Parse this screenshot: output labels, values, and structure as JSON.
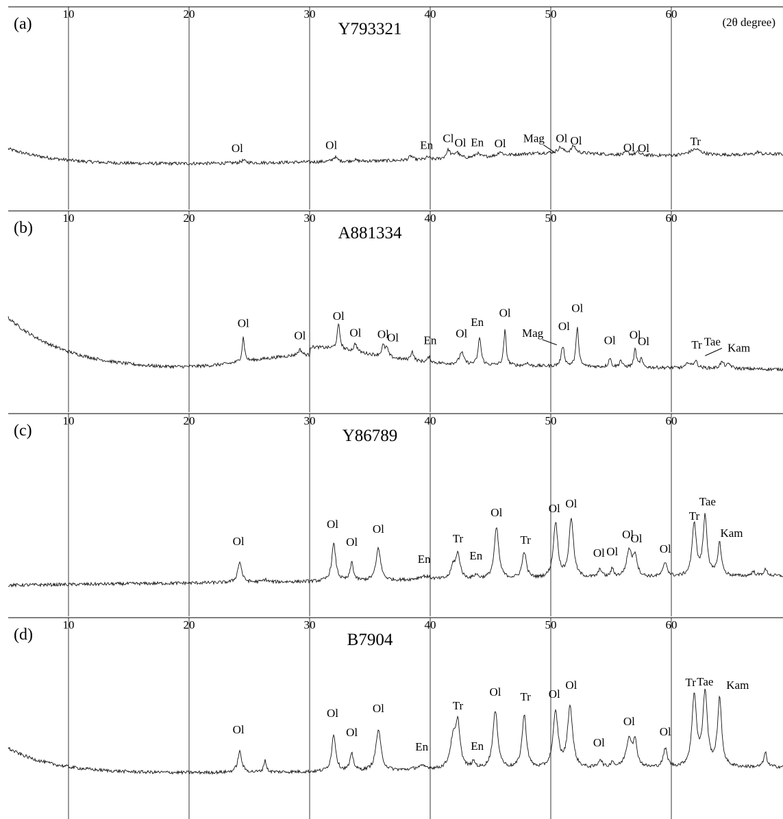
{
  "chart_data": {
    "type": "line",
    "x_unit": "(2θ degree)",
    "x_ticks": [
      10,
      20,
      30,
      40,
      50,
      60
    ],
    "xlim": [
      5,
      69
    ],
    "grid": "vertical lines at 10° intervals",
    "panels": [
      {
        "label": "(a)",
        "title": "Y793321",
        "peaks": [
          {
            "x": 24.5,
            "y": 0.12,
            "w": 0.25,
            "label": "Ol",
            "lx": 24.0,
            "ly": 0.6
          },
          {
            "x": 32.1,
            "y": 0.22,
            "w": 0.22,
            "label": "Ol",
            "lx": 31.8,
            "ly": 0.75
          },
          {
            "x": 33.7,
            "y": 0.07,
            "w": 0.2,
            "label": "",
            "lx": 0,
            "ly": 0
          },
          {
            "x": 38.4,
            "y": 0.2,
            "w": 0.2,
            "label": "",
            "lx": 0,
            "ly": 0
          },
          {
            "x": 39.8,
            "y": 0.12,
            "w": 0.2,
            "label": "En",
            "lx": 39.7,
            "ly": 0.75
          },
          {
            "x": 41.5,
            "y": 0.42,
            "w": 0.2,
            "label": "Cl",
            "lx": 41.5,
            "ly": 1.08
          },
          {
            "x": 42.2,
            "y": 0.3,
            "w": 0.25,
            "label": "Ol",
            "lx": 42.5,
            "ly": 0.87
          },
          {
            "x": 43.9,
            "y": 0.2,
            "w": 0.2,
            "label": "En",
            "lx": 43.9,
            "ly": 0.88
          },
          {
            "x": 45.8,
            "y": 0.2,
            "w": 0.2,
            "label": "Ol",
            "lx": 45.8,
            "ly": 0.83
          },
          {
            "x": 50.8,
            "y": 0.26,
            "w": 0.25,
            "label": "Ol",
            "lx": 50.9,
            "ly": 1.08
          },
          {
            "x": 51.9,
            "y": 0.34,
            "w": 0.2,
            "label": "Ol",
            "lx": 52.1,
            "ly": 0.96
          },
          {
            "x": 56.3,
            "y": 0.13,
            "w": 0.2,
            "label": "Ol",
            "lx": 56.5,
            "ly": 0.63
          },
          {
            "x": 57.2,
            "y": 0.15,
            "w": 0.2,
            "label": "Ol",
            "lx": 57.7,
            "ly": 0.6
          },
          {
            "x": 62.0,
            "y": 0.3,
            "w": 0.6,
            "label": "Tr",
            "lx": 62.0,
            "ly": 0.93
          },
          {
            "x": 67.2,
            "y": 0.12,
            "w": 0.2,
            "label": "",
            "lx": 0,
            "ly": 0
          }
        ],
        "extra_labels": [
          {
            "text": "Mag",
            "lx": 48.6,
            "ly": 1.08,
            "px": 50.4,
            "py": 0.55
          }
        ]
      },
      {
        "label": "(b)",
        "title": "A881334",
        "peaks": [
          {
            "x": 24.5,
            "y": 1.2,
            "w": 0.12,
            "label": "Ol",
            "lx": 24.5,
            "ly": 2.15
          },
          {
            "x": 29.2,
            "y": 0.28,
            "w": 0.2,
            "label": "Ol",
            "lx": 29.2,
            "ly": 1.55
          },
          {
            "x": 32.4,
            "y": 1.2,
            "w": 0.14,
            "label": "Ol",
            "lx": 32.4,
            "ly": 2.5
          },
          {
            "x": 33.8,
            "y": 0.4,
            "w": 0.15,
            "label": "Ol",
            "lx": 33.8,
            "ly": 1.68
          },
          {
            "x": 36.1,
            "y": 0.5,
            "w": 0.15,
            "label": "Ol",
            "lx": 36.1,
            "ly": 1.62
          },
          {
            "x": 36.4,
            "y": 0.4,
            "w": 0.15,
            "label": "Ol",
            "lx": 36.9,
            "ly": 1.45
          },
          {
            "x": 38.5,
            "y": 0.45,
            "w": 0.15,
            "label": "",
            "lx": 0,
            "ly": 0
          },
          {
            "x": 39.9,
            "y": 0.25,
            "w": 0.15,
            "label": "En",
            "lx": 40.0,
            "ly": 1.32
          },
          {
            "x": 42.6,
            "y": 0.6,
            "w": 0.2,
            "label": "Ol",
            "lx": 42.6,
            "ly": 1.65
          },
          {
            "x": 44.1,
            "y": 1.35,
            "w": 0.14,
            "label": "En",
            "lx": 43.9,
            "ly": 2.2
          },
          {
            "x": 46.2,
            "y": 1.7,
            "w": 0.12,
            "label": "Ol",
            "lx": 46.2,
            "ly": 2.65
          },
          {
            "x": 48.0,
            "y": 0.15,
            "w": 0.15,
            "label": "",
            "lx": 0,
            "ly": 0
          },
          {
            "x": 51.0,
            "y": 1.0,
            "w": 0.15,
            "label": "Ol",
            "lx": 51.1,
            "ly": 2.0
          },
          {
            "x": 52.2,
            "y": 2.0,
            "w": 0.12,
            "label": "Ol",
            "lx": 52.2,
            "ly": 2.88
          },
          {
            "x": 54.9,
            "y": 0.45,
            "w": 0.12,
            "label": "Ol",
            "lx": 54.9,
            "ly": 1.32
          },
          {
            "x": 55.8,
            "y": 0.35,
            "w": 0.12,
            "label": "",
            "lx": 0,
            "ly": 0
          },
          {
            "x": 57.0,
            "y": 0.9,
            "w": 0.12,
            "label": "Ol",
            "lx": 57.0,
            "ly": 1.58
          },
          {
            "x": 57.5,
            "y": 0.4,
            "w": 0.12,
            "label": "Ol",
            "lx": 57.7,
            "ly": 1.27
          },
          {
            "x": 61.4,
            "y": 0.28,
            "w": 0.15,
            "label": "",
            "lx": 0,
            "ly": 0
          },
          {
            "x": 62.0,
            "y": 0.35,
            "w": 0.2,
            "label": "Tr",
            "lx": 62.1,
            "ly": 1.1
          },
          {
            "x": 64.2,
            "y": 0.3,
            "w": 0.2,
            "label": "",
            "lx": 0,
            "ly": 0
          },
          {
            "x": 64.8,
            "y": 0.2,
            "w": 0.2,
            "label": "Kam",
            "lx": 65.6,
            "ly": 0.95
          }
        ],
        "extra_labels": [
          {
            "text": "Mag",
            "lx": 48.5,
            "ly": 1.67,
            "px": 50.5,
            "py": 1.28
          },
          {
            "text": "Tae",
            "lx": 63.4,
            "ly": 1.25,
            "px": 62.8,
            "py": 0.75
          }
        ]
      },
      {
        "label": "(c)",
        "title": "Y86789",
        "peaks": [
          {
            "x": 24.2,
            "y": 1.0,
            "w": 0.2,
            "label": "Ol",
            "lx": 24.1,
            "ly": 2.03
          },
          {
            "x": 26.3,
            "y": 0.12,
            "w": 0.2,
            "label": "",
            "lx": 0,
            "ly": 0
          },
          {
            "x": 32.0,
            "y": 1.8,
            "w": 0.2,
            "label": "Ol",
            "lx": 31.9,
            "ly": 2.87
          },
          {
            "x": 33.5,
            "y": 0.9,
            "w": 0.15,
            "label": "Ol",
            "lx": 33.5,
            "ly": 2.0
          },
          {
            "x": 35.7,
            "y": 1.6,
            "w": 0.22,
            "label": "Ol",
            "lx": 35.7,
            "ly": 2.63
          },
          {
            "x": 39.5,
            "y": 0.18,
            "w": 0.6,
            "label": "En",
            "lx": 39.5,
            "ly": 1.17
          },
          {
            "x": 41.9,
            "y": 0.6,
            "w": 0.2,
            "label": "",
            "lx": 0,
            "ly": 0
          },
          {
            "x": 42.3,
            "y": 1.2,
            "w": 0.22,
            "label": "Tr",
            "lx": 42.3,
            "ly": 2.17
          },
          {
            "x": 43.8,
            "y": 0.2,
            "w": 0.2,
            "label": "En",
            "lx": 43.8,
            "ly": 1.33
          },
          {
            "x": 45.5,
            "y": 2.5,
            "w": 0.22,
            "label": "Ol",
            "lx": 45.5,
            "ly": 3.43
          },
          {
            "x": 47.8,
            "y": 1.3,
            "w": 0.2,
            "label": "Tr",
            "lx": 47.9,
            "ly": 2.1
          },
          {
            "x": 50.4,
            "y": 2.7,
            "w": 0.22,
            "label": "Ol",
            "lx": 50.3,
            "ly": 3.63
          },
          {
            "x": 51.7,
            "y": 2.9,
            "w": 0.22,
            "label": "Ol",
            "lx": 51.7,
            "ly": 3.87
          },
          {
            "x": 54.1,
            "y": 0.4,
            "w": 0.18,
            "label": "Ol",
            "lx": 54.0,
            "ly": 1.47
          },
          {
            "x": 55.1,
            "y": 0.4,
            "w": 0.15,
            "label": "Ol",
            "lx": 55.1,
            "ly": 1.53
          },
          {
            "x": 56.5,
            "y": 1.3,
            "w": 0.25,
            "label": "Ol",
            "lx": 56.4,
            "ly": 2.37
          },
          {
            "x": 57.0,
            "y": 1.0,
            "w": 0.2,
            "label": "Ol",
            "lx": 57.1,
            "ly": 2.17
          },
          {
            "x": 59.5,
            "y": 0.7,
            "w": 0.2,
            "label": "Ol",
            "lx": 59.5,
            "ly": 1.67
          },
          {
            "x": 61.9,
            "y": 2.6,
            "w": 0.2,
            "label": "Tr",
            "lx": 61.9,
            "ly": 3.27
          },
          {
            "x": 62.8,
            "y": 2.9,
            "w": 0.2,
            "label": "Tae",
            "lx": 63.0,
            "ly": 3.97
          },
          {
            "x": 64.0,
            "y": 1.6,
            "w": 0.18,
            "label": "Kam",
            "lx": 65.0,
            "ly": 2.43
          },
          {
            "x": 66.8,
            "y": 0.2,
            "w": 0.2,
            "label": "",
            "lx": 0,
            "ly": 0
          },
          {
            "x": 67.8,
            "y": 0.3,
            "w": 0.2,
            "label": "",
            "lx": 0,
            "ly": 0
          }
        ],
        "extra_labels": []
      },
      {
        "label": "(d)",
        "title": "B7904",
        "peaks": [
          {
            "x": 24.2,
            "y": 1.0,
            "w": 0.2,
            "label": "Ol",
            "lx": 24.1,
            "ly": 1.97
          },
          {
            "x": 26.3,
            "y": 0.6,
            "w": 0.12,
            "label": "",
            "lx": 0,
            "ly": 0
          },
          {
            "x": 32.0,
            "y": 1.8,
            "w": 0.2,
            "label": "Ol",
            "lx": 31.9,
            "ly": 2.77
          },
          {
            "x": 33.5,
            "y": 0.8,
            "w": 0.18,
            "label": "Ol",
            "lx": 33.5,
            "ly": 1.83
          },
          {
            "x": 35.7,
            "y": 2.0,
            "w": 0.25,
            "label": "Ol",
            "lx": 35.7,
            "ly": 3.0
          },
          {
            "x": 39.3,
            "y": 0.18,
            "w": 0.7,
            "label": "En",
            "lx": 39.3,
            "ly": 1.13
          },
          {
            "x": 41.9,
            "y": 1.4,
            "w": 0.3,
            "label": "",
            "lx": 0,
            "ly": 0
          },
          {
            "x": 42.3,
            "y": 2.0,
            "w": 0.22,
            "label": "Tr",
            "lx": 42.3,
            "ly": 3.13
          },
          {
            "x": 43.6,
            "y": 0.3,
            "w": 0.2,
            "label": "En",
            "lx": 43.9,
            "ly": 1.17
          },
          {
            "x": 45.4,
            "y": 2.8,
            "w": 0.25,
            "label": "Ol",
            "lx": 45.4,
            "ly": 3.8
          },
          {
            "x": 47.8,
            "y": 2.6,
            "w": 0.22,
            "label": "Tr",
            "lx": 47.9,
            "ly": 3.57
          },
          {
            "x": 50.4,
            "y": 2.7,
            "w": 0.25,
            "label": "Ol",
            "lx": 50.3,
            "ly": 3.7
          },
          {
            "x": 51.6,
            "y": 3.0,
            "w": 0.25,
            "label": "Ol",
            "lx": 51.7,
            "ly": 4.13
          },
          {
            "x": 54.1,
            "y": 0.4,
            "w": 0.2,
            "label": "Ol",
            "lx": 54.0,
            "ly": 1.33
          },
          {
            "x": 55.1,
            "y": 0.3,
            "w": 0.15,
            "label": "",
            "lx": 0,
            "ly": 0
          },
          {
            "x": 56.5,
            "y": 1.4,
            "w": 0.3,
            "label": "Ol",
            "lx": 56.5,
            "ly": 2.37
          },
          {
            "x": 57.0,
            "y": 1.1,
            "w": 0.2,
            "label": "",
            "lx": 0,
            "ly": 0
          },
          {
            "x": 59.5,
            "y": 0.9,
            "w": 0.2,
            "label": "Ol",
            "lx": 59.5,
            "ly": 1.87
          },
          {
            "x": 61.9,
            "y": 3.5,
            "w": 0.22,
            "label": "Tr",
            "lx": 61.6,
            "ly": 4.27
          },
          {
            "x": 62.8,
            "y": 3.6,
            "w": 0.22,
            "label": "Tae",
            "lx": 62.8,
            "ly": 4.3
          },
          {
            "x": 64.0,
            "y": 3.3,
            "w": 0.2,
            "label": "Kam",
            "lx": 65.5,
            "ly": 4.13
          },
          {
            "x": 67.8,
            "y": 0.7,
            "w": 0.15,
            "label": "",
            "lx": 0,
            "ly": 0
          }
        ],
        "extra_labels": []
      }
    ]
  }
}
